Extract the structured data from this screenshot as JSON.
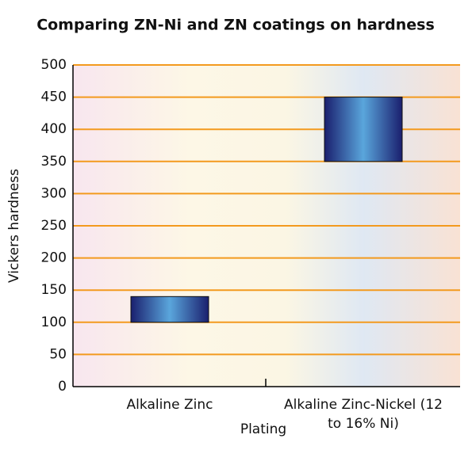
{
  "chart_data": {
    "type": "floating-bar",
    "title": "Comparing ZN-Ni and ZN coatings on hardness",
    "xlabel": "Plating",
    "ylabel": "Vickers hardness",
    "categories": [
      "Alkaline Zinc",
      "Alkaline Zinc-Nickel (12 to 16% Ni)"
    ],
    "low": [
      100,
      350
    ],
    "high": [
      140,
      450
    ],
    "color": "#1c2a78",
    "ylim": [
      0,
      500
    ],
    "yticks": [
      0,
      50,
      100,
      150,
      200,
      250,
      300,
      350,
      400,
      450,
      500
    ],
    "grid": true,
    "grid_color": "#f39a1e"
  }
}
